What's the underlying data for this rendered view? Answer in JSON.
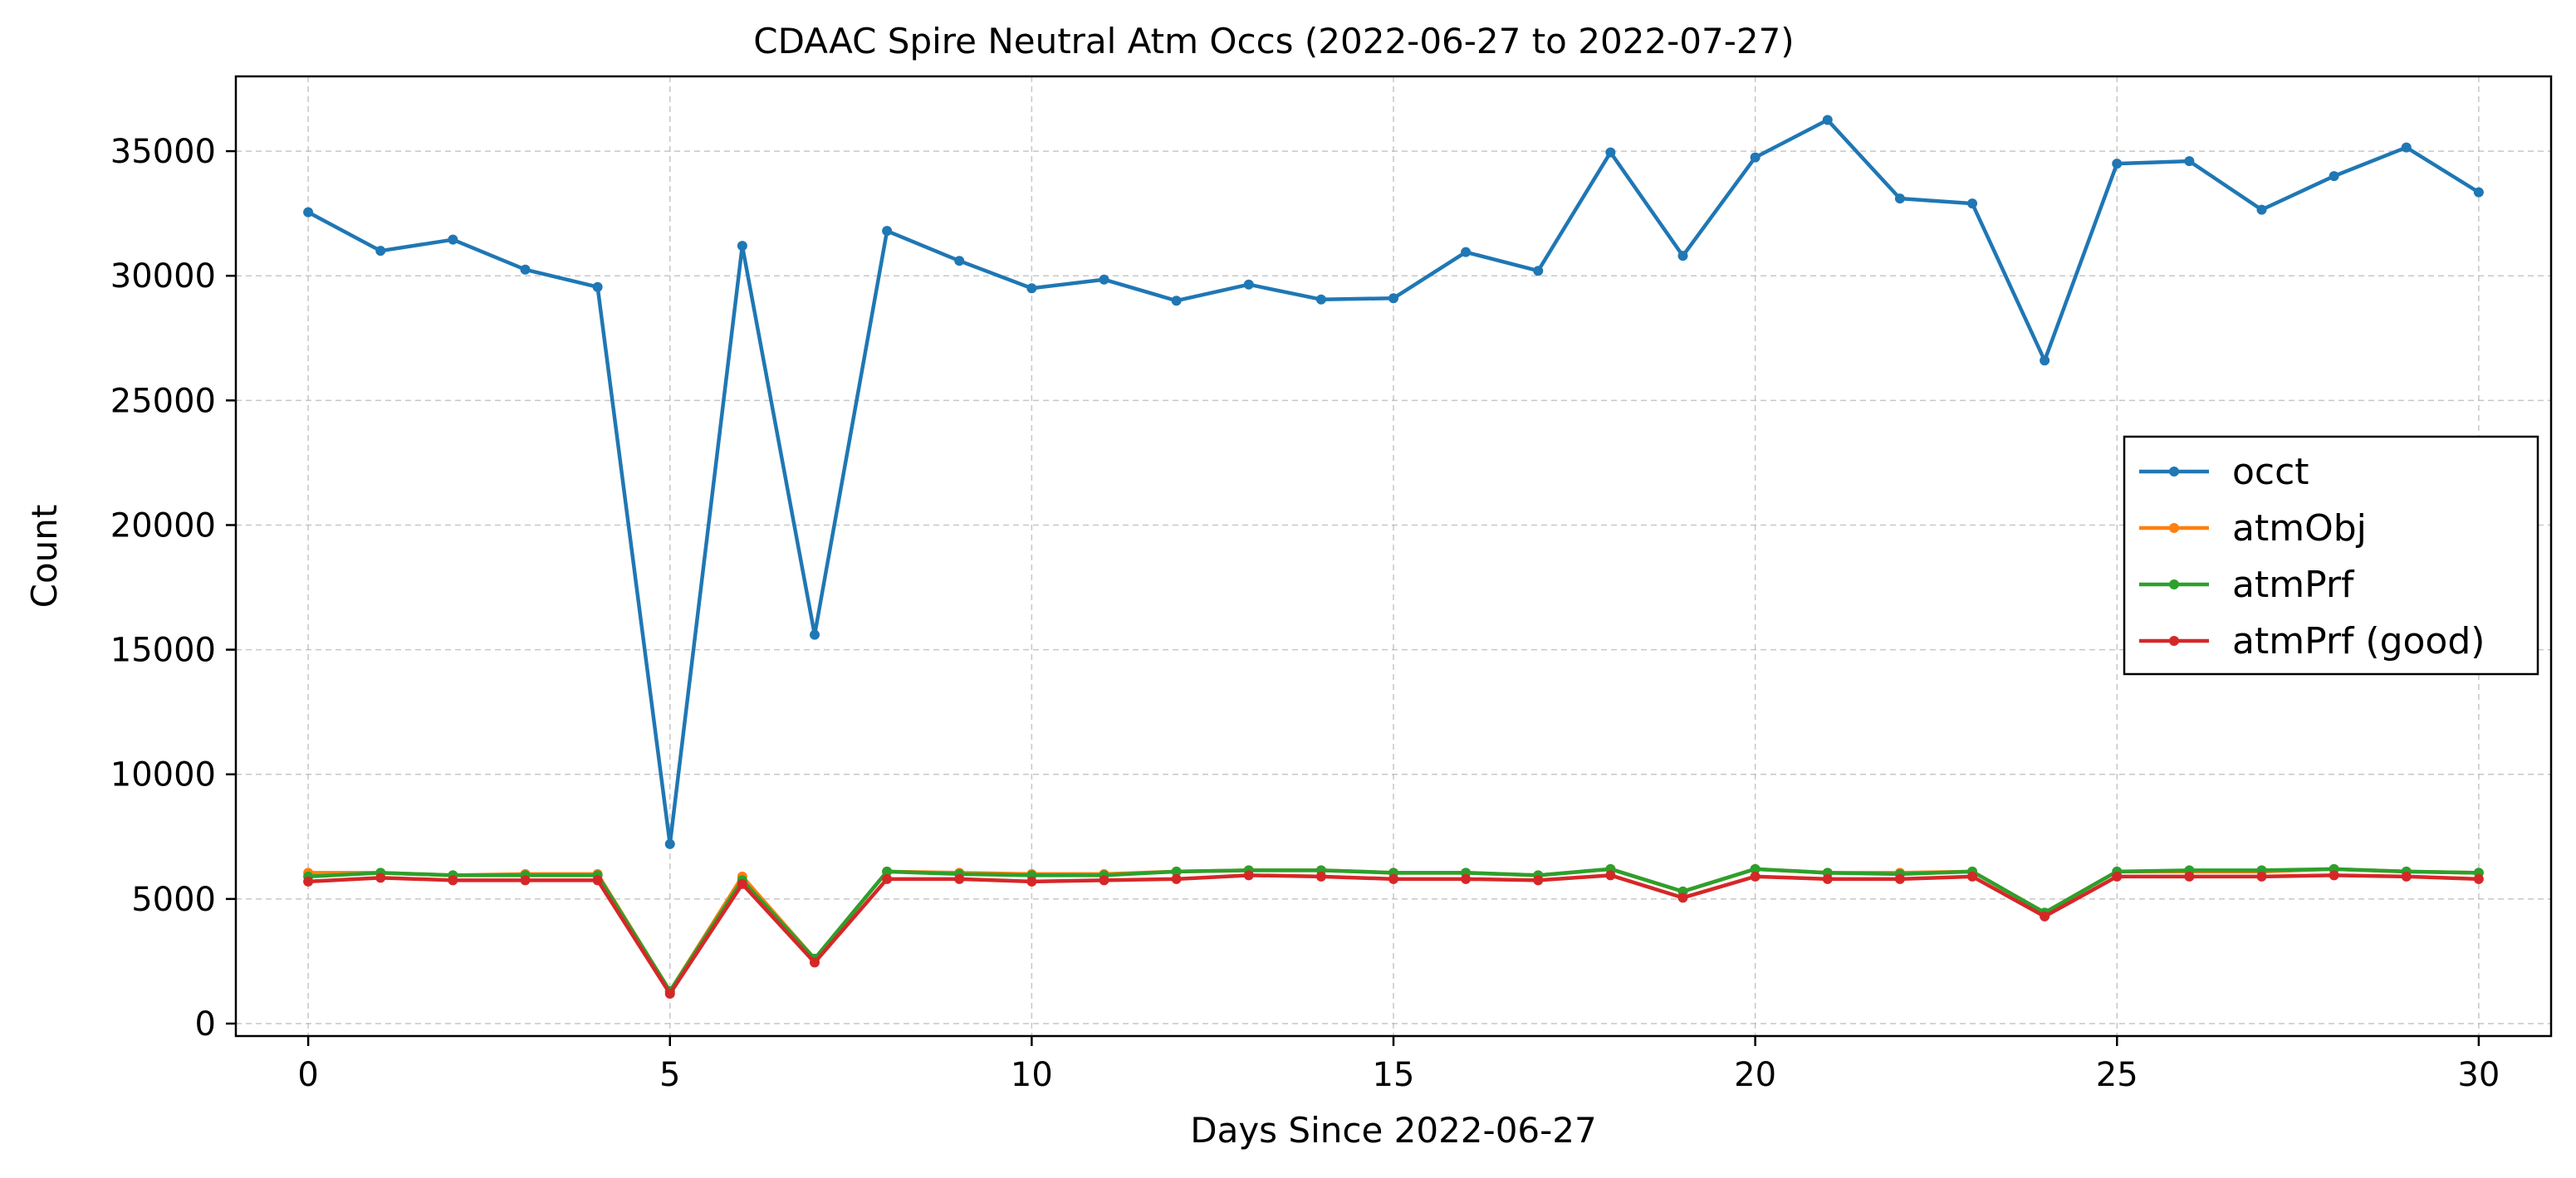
{
  "chart_data": {
    "type": "line",
    "title": "CDAAC Spire Neutral Atm Occs (2022-06-27 to 2022-07-27)",
    "xlabel": "Days Since 2022-06-27",
    "ylabel": "Count",
    "xlim": [
      -1,
      31
    ],
    "ylim": [
      -500,
      38000
    ],
    "xticks": [
      0,
      5,
      10,
      15,
      20,
      25,
      30
    ],
    "yticks": [
      0,
      5000,
      10000,
      15000,
      20000,
      25000,
      30000,
      35000
    ],
    "grid": true,
    "legend_position": "center-right",
    "x": [
      0,
      1,
      2,
      3,
      4,
      5,
      6,
      7,
      8,
      9,
      10,
      11,
      12,
      13,
      14,
      15,
      16,
      17,
      18,
      19,
      20,
      21,
      22,
      23,
      24,
      25,
      26,
      27,
      28,
      29,
      30
    ],
    "series": [
      {
        "name": "occt",
        "color": "#1f77b4",
        "values": [
          32550,
          31000,
          31450,
          30250,
          29550,
          7200,
          31200,
          15600,
          31800,
          30600,
          29500,
          29850,
          29000,
          29650,
          29050,
          29100,
          30950,
          30200,
          34950,
          30800,
          34750,
          36250,
          33100,
          32900,
          26600,
          34500,
          34600,
          32650,
          34000,
          35150,
          33350
        ]
      },
      {
        "name": "atmObj",
        "color": "#ff7f0e",
        "values": [
          6050,
          6050,
          5950,
          6000,
          6000,
          1300,
          5900,
          2600,
          6100,
          6050,
          6000,
          6000,
          6100,
          6150,
          6150,
          6050,
          6050,
          5950,
          6200,
          5300,
          6200,
          6050,
          6050,
          6100,
          4450,
          6100,
          6100,
          6100,
          6200,
          6100,
          6050
        ]
      },
      {
        "name": "atmPrf",
        "color": "#2ca02c",
        "values": [
          5900,
          6050,
          5950,
          5950,
          5950,
          1300,
          5750,
          2600,
          6100,
          6000,
          5950,
          5950,
          6100,
          6150,
          6150,
          6050,
          6050,
          5950,
          6200,
          5300,
          6200,
          6050,
          6000,
          6100,
          4450,
          6100,
          6150,
          6150,
          6200,
          6100,
          6050
        ]
      },
      {
        "name": "atmPrf (good)",
        "color": "#d62728",
        "values": [
          5700,
          5850,
          5750,
          5750,
          5750,
          1200,
          5600,
          2450,
          5800,
          5800,
          5700,
          5750,
          5800,
          5950,
          5900,
          5800,
          5800,
          5750,
          5950,
          5050,
          5900,
          5800,
          5800,
          5900,
          4300,
          5900,
          5900,
          5900,
          5950,
          5900,
          5800
        ]
      }
    ]
  }
}
